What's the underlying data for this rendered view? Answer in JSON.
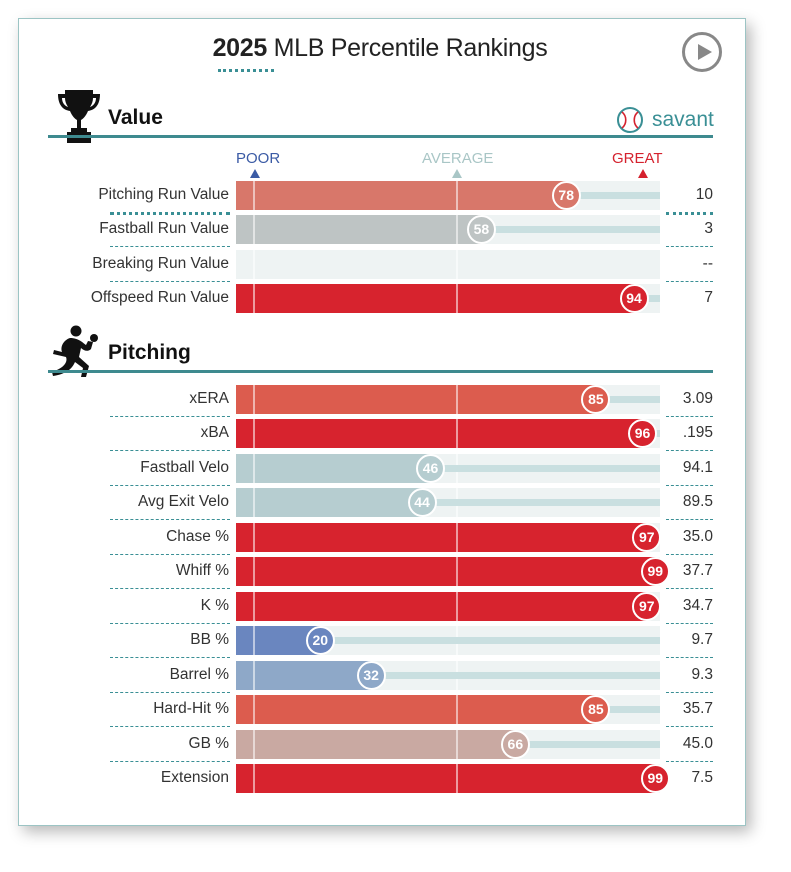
{
  "title": {
    "year": "2025",
    "rest": " MLB Percentile Rankings"
  },
  "savant_label": "savant",
  "headers": {
    "poor": "POOR",
    "average": "AVERAGE",
    "great": "GREAT"
  },
  "colors": {
    "accent": "#3a8f95",
    "poor": "#3b5ba5",
    "average": "#a9c6c6",
    "great": "#d5222e"
  },
  "sections": [
    {
      "title": "Value",
      "icon": "trophy-icon"
    },
    {
      "title": "Pitching",
      "icon": "pitcher-icon"
    }
  ],
  "chart_data": [
    {
      "type": "bar",
      "section": "Value",
      "xlim": [
        0,
        100
      ],
      "categories": [
        "Pitching Run Value",
        "Fastball Run Value",
        "Breaking Run Value",
        "Offspeed Run Value"
      ],
      "percentiles": [
        78,
        58,
        null,
        94
      ],
      "values": [
        "10",
        "3",
        "--",
        "7"
      ],
      "bar_colors": [
        "#d8776a",
        "#bec4c4",
        "",
        "#d7232e"
      ]
    },
    {
      "type": "bar",
      "section": "Pitching",
      "xlim": [
        0,
        100
      ],
      "categories": [
        "xERA",
        "xBA",
        "Fastball Velo",
        "Avg Exit Velo",
        "Chase %",
        "Whiff %",
        "K %",
        "BB %",
        "Barrel %",
        "Hard-Hit %",
        "GB %",
        "Extension"
      ],
      "percentiles": [
        85,
        96,
        46,
        44,
        97,
        99,
        97,
        20,
        32,
        85,
        66,
        99
      ],
      "values": [
        "3.09",
        ".195",
        "94.1",
        "89.5",
        "35.0",
        "37.7",
        "34.7",
        "9.7",
        "9.3",
        "35.7",
        "45.0",
        "7.5"
      ],
      "bar_colors": [
        "#dc5c4e",
        "#d7232e",
        "#b6cdd0",
        "#b6cdd0",
        "#d7232e",
        "#d7232e",
        "#d7232e",
        "#6a86bf",
        "#8ea8c8",
        "#dc5c4e",
        "#c9a9a2",
        "#d7232e"
      ]
    }
  ]
}
